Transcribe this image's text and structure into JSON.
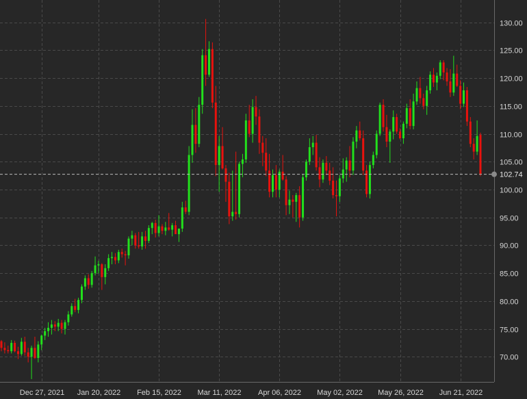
{
  "chart_data": {
    "type": "candlestick",
    "y_axis": {
      "position": "right",
      "min": 65.5,
      "max": 134.0,
      "ticks": [
        70,
        75,
        80,
        85,
        90,
        95,
        100,
        105,
        110,
        115,
        120,
        125,
        130
      ],
      "tick_labels": [
        "70.00",
        "75.00",
        "80.00",
        "85.00",
        "90.00",
        "95.00",
        "100.00",
        "105.00",
        "110.00",
        "115.00",
        "120.00",
        "125.00",
        "130.00"
      ]
    },
    "x_axis": {
      "labels": [
        {
          "index": 12,
          "text": "Dec 27, 2021"
        },
        {
          "index": 29,
          "text": "Jan 20, 2022"
        },
        {
          "index": 47,
          "text": "Feb 15, 2022"
        },
        {
          "index": 65,
          "text": "Mar 11, 2022"
        },
        {
          "index": 83,
          "text": "Apr 06, 2022"
        },
        {
          "index": 101,
          "text": "May 02, 2022"
        },
        {
          "index": 119,
          "text": "May 26, 2022"
        },
        {
          "index": 137,
          "text": "Jun 21, 2022"
        }
      ]
    },
    "grid": true,
    "last_price": 102.74,
    "last_price_label": "102.74",
    "up_color": "#22e01c",
    "down_color": "#e8120d",
    "candles": [
      [
        72.8,
        73.0,
        71.0,
        71.6
      ],
      [
        71.6,
        72.6,
        70.6,
        71.2
      ],
      [
        71.2,
        72.0,
        70.6,
        71.0
      ],
      [
        71.0,
        73.0,
        70.6,
        72.5
      ],
      [
        72.5,
        72.9,
        70.8,
        71.0
      ],
      [
        71.0,
        71.8,
        69.6,
        70.5
      ],
      [
        70.5,
        73.4,
        70.2,
        72.7
      ],
      [
        72.7,
        73.6,
        70.2,
        70.8
      ],
      [
        70.8,
        71.6,
        69.0,
        70.0
      ],
      [
        70.0,
        72.0,
        66.0,
        71.6
      ],
      [
        71.6,
        73.6,
        69.6,
        69.8
      ],
      [
        69.8,
        72.8,
        69.0,
        72.2
      ],
      [
        72.2,
        74.0,
        71.2,
        73.8
      ],
      [
        73.8,
        75.2,
        73.0,
        74.6
      ],
      [
        74.6,
        76.2,
        73.6,
        75.2
      ],
      [
        75.2,
        76.6,
        74.0,
        75.8
      ],
      [
        75.8,
        76.4,
        74.6,
        75.4
      ],
      [
        75.4,
        76.8,
        74.6,
        76.1
      ],
      [
        76.1,
        76.6,
        74.2,
        75.0
      ],
      [
        75.0,
        76.6,
        74.0,
        76.2
      ],
      [
        76.2,
        78.2,
        75.6,
        77.6
      ],
      [
        77.6,
        79.6,
        77.2,
        79.1
      ],
      [
        79.1,
        80.4,
        78.0,
        78.4
      ],
      [
        78.4,
        80.6,
        77.8,
        80.2
      ],
      [
        80.2,
        83.0,
        79.6,
        82.6
      ],
      [
        82.6,
        84.6,
        82.0,
        84.1
      ],
      [
        84.1,
        84.8,
        82.2,
        82.9
      ],
      [
        82.9,
        85.4,
        82.4,
        85.0
      ],
      [
        85.0,
        88.0,
        84.6,
        86.4
      ],
      [
        86.4,
        87.2,
        85.0,
        86.6
      ],
      [
        86.6,
        86.8,
        82.0,
        84.3
      ],
      [
        84.3,
        86.6,
        83.0,
        85.9
      ],
      [
        85.9,
        88.4,
        85.4,
        87.7
      ],
      [
        87.7,
        88.8,
        86.6,
        87.9
      ],
      [
        87.9,
        88.6,
        86.6,
        87.3
      ],
      [
        87.3,
        89.2,
        86.8,
        88.8
      ],
      [
        88.8,
        89.4,
        87.8,
        88.4
      ],
      [
        88.4,
        89.0,
        86.4,
        88.2
      ],
      [
        88.2,
        91.6,
        87.6,
        91.2
      ],
      [
        91.2,
        92.6,
        90.0,
        91.8
      ],
      [
        91.8,
        92.2,
        89.4,
        90.0
      ],
      [
        90.0,
        92.4,
        89.4,
        89.8
      ],
      [
        89.8,
        92.4,
        89.2,
        91.6
      ],
      [
        91.6,
        92.6,
        89.4,
        90.8
      ],
      [
        90.8,
        93.6,
        90.4,
        93.1
      ],
      [
        93.1,
        94.2,
        92.0,
        94.0
      ],
      [
        94.0,
        94.6,
        91.4,
        92.2
      ],
      [
        92.2,
        95.4,
        91.6,
        93.4
      ],
      [
        93.4,
        93.8,
        92.0,
        92.6
      ],
      [
        92.6,
        94.2,
        91.8,
        93.2
      ],
      [
        93.2,
        95.8,
        92.6,
        92.8
      ],
      [
        92.8,
        94.0,
        91.6,
        93.6
      ],
      [
        93.6,
        94.4,
        92.6,
        92.0
      ],
      [
        92.0,
        93.0,
        90.6,
        93.0
      ],
      [
        93.0,
        97.8,
        92.4,
        96.8
      ],
      [
        96.8,
        98.0,
        95.6,
        96.0
      ],
      [
        96.0,
        107.8,
        95.4,
        106.2
      ],
      [
        106.2,
        114.4,
        104.8,
        111.6
      ],
      [
        111.6,
        114.6,
        106.6,
        108.2
      ],
      [
        108.2,
        116.6,
        107.6,
        115.2
      ],
      [
        115.2,
        125.2,
        113.6,
        124.1
      ],
      [
        124.1,
        130.6,
        118.6,
        120.6
      ],
      [
        120.6,
        126.6,
        120.2,
        125.2
      ],
      [
        125.2,
        126.4,
        114.6,
        115.6
      ],
      [
        115.6,
        118.6,
        102.4,
        104.4
      ],
      [
        104.4,
        109.6,
        99.6,
        107.8
      ],
      [
        107.8,
        111.2,
        103.6,
        103.8
      ],
      [
        103.8,
        104.4,
        97.8,
        101.4
      ],
      [
        101.4,
        103.0,
        93.8,
        95.2
      ],
      [
        95.2,
        103.4,
        94.4,
        96.0
      ],
      [
        96.0,
        106.8,
        94.6,
        95.6
      ],
      [
        95.6,
        105.0,
        95.0,
        104.6
      ],
      [
        104.6,
        106.4,
        102.2,
        105.4
      ],
      [
        105.4,
        113.6,
        104.8,
        112.4
      ],
      [
        112.4,
        115.2,
        109.4,
        110.0
      ],
      [
        110.0,
        116.2,
        108.4,
        114.8
      ],
      [
        114.8,
        116.8,
        111.6,
        113.1
      ],
      [
        113.1,
        114.4,
        106.4,
        108.4
      ],
      [
        108.4,
        109.6,
        104.2,
        106.6
      ],
      [
        106.6,
        109.2,
        102.4,
        103.4
      ],
      [
        103.4,
        106.4,
        98.6,
        99.6
      ],
      [
        99.6,
        103.6,
        98.6,
        102.6
      ],
      [
        102.6,
        104.4,
        98.6,
        100.0
      ],
      [
        100.0,
        103.6,
        98.6,
        103.2
      ],
      [
        103.2,
        106.2,
        101.6,
        101.8
      ],
      [
        101.8,
        102.4,
        95.4,
        97.2
      ],
      [
        97.2,
        99.8,
        95.6,
        98.2
      ],
      [
        98.2,
        99.0,
        95.0,
        97.8
      ],
      [
        97.8,
        99.4,
        94.2,
        99.0
      ],
      [
        99.0,
        100.6,
        93.2,
        95.0
      ],
      [
        95.0,
        102.8,
        94.4,
        102.2
      ],
      [
        102.2,
        105.4,
        101.6,
        105.0
      ],
      [
        105.0,
        109.2,
        104.4,
        107.6
      ],
      [
        107.6,
        109.6,
        106.2,
        108.4
      ],
      [
        108.4,
        109.8,
        103.4,
        104.0
      ],
      [
        104.0,
        105.8,
        100.4,
        101.8
      ],
      [
        101.8,
        105.4,
        101.2,
        104.8
      ],
      [
        104.8,
        106.0,
        102.6,
        103.4
      ],
      [
        103.4,
        104.8,
        100.8,
        101.6
      ],
      [
        101.6,
        104.0,
        98.4,
        99.0
      ],
      [
        99.0,
        101.6,
        95.2,
        98.8
      ],
      [
        98.8,
        102.6,
        97.8,
        102.0
      ],
      [
        102.0,
        105.6,
        101.2,
        103.6
      ],
      [
        103.6,
        105.8,
        101.4,
        105.2
      ],
      [
        105.2,
        107.8,
        102.2,
        103.4
      ],
      [
        103.4,
        109.4,
        102.6,
        108.6
      ],
      [
        108.6,
        111.4,
        107.4,
        110.6
      ],
      [
        110.6,
        112.2,
        108.8,
        109.2
      ],
      [
        109.2,
        110.6,
        102.6,
        103.4
      ],
      [
        103.4,
        104.4,
        98.6,
        99.2
      ],
      [
        99.2,
        105.0,
        98.4,
        104.4
      ],
      [
        104.4,
        106.8,
        103.8,
        106.2
      ],
      [
        106.2,
        110.6,
        105.6,
        110.0
      ],
      [
        110.0,
        115.6,
        109.6,
        115.2
      ],
      [
        115.2,
        116.2,
        110.4,
        111.2
      ],
      [
        111.2,
        113.4,
        107.6,
        108.6
      ],
      [
        108.6,
        110.8,
        104.8,
        110.4
      ],
      [
        110.4,
        114.2,
        109.0,
        113.0
      ],
      [
        113.0,
        113.6,
        110.0,
        110.4
      ],
      [
        110.4,
        111.0,
        109.0,
        109.2
      ],
      [
        109.2,
        112.2,
        108.2,
        111.8
      ],
      [
        111.8,
        115.4,
        111.0,
        114.6
      ],
      [
        114.6,
        116.2,
        110.8,
        111.4
      ],
      [
        111.4,
        117.2,
        110.8,
        115.8
      ],
      [
        115.8,
        119.4,
        115.2,
        118.2
      ],
      [
        118.2,
        120.2,
        115.4,
        116.4
      ],
      [
        116.4,
        117.2,
        114.4,
        115.0
      ],
      [
        115.0,
        118.6,
        113.4,
        117.8
      ],
      [
        117.8,
        121.2,
        117.2,
        120.6
      ],
      [
        120.6,
        121.8,
        118.4,
        119.2
      ],
      [
        119.2,
        121.0,
        117.8,
        120.4
      ],
      [
        120.4,
        123.2,
        119.8,
        122.8
      ],
      [
        122.8,
        123.2,
        119.6,
        121.0
      ],
      [
        121.0,
        121.8,
        118.6,
        119.4
      ],
      [
        119.4,
        121.6,
        116.6,
        117.4
      ],
      [
        117.4,
        124.0,
        116.8,
        120.8
      ],
      [
        120.8,
        122.4,
        118.4,
        118.6
      ],
      [
        118.6,
        119.6,
        114.4,
        115.4
      ],
      [
        115.4,
        119.2,
        114.8,
        117.8
      ],
      [
        117.8,
        118.4,
        111.4,
        112.2
      ],
      [
        112.2,
        113.0,
        107.6,
        108.2
      ],
      [
        108.2,
        109.2,
        105.4,
        106.8
      ],
      [
        106.8,
        112.4,
        106.2,
        109.6
      ],
      [
        109.8,
        110.2,
        102.4,
        102.74
      ]
    ]
  }
}
